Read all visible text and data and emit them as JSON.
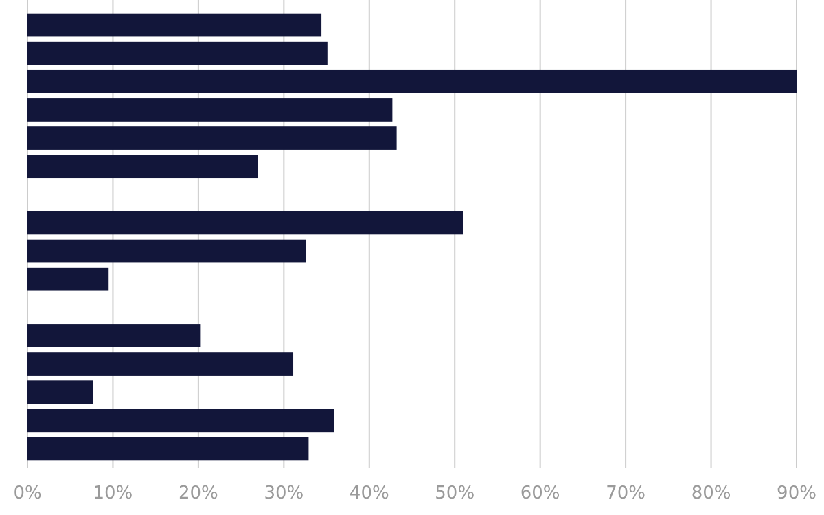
{
  "chart_data": {
    "type": "bar",
    "orientation": "horizontal",
    "categories": [
      null,
      null,
      null,
      null,
      null,
      null,
      null,
      null,
      null,
      null,
      null,
      null,
      null,
      null,
      null,
      null
    ],
    "values": [
      34.4,
      35.1,
      90,
      42.7,
      43.2,
      27.0,
      null,
      51.0,
      32.6,
      9.5,
      null,
      20.2,
      31.1,
      7.7,
      35.9,
      32.9
    ],
    "color": "#12163a",
    "xlim": [
      0,
      90
    ],
    "xticks": [
      {
        "value": 0,
        "label": "0%"
      },
      {
        "value": 10,
        "label": "10%"
      },
      {
        "value": 20,
        "label": "20%"
      },
      {
        "value": 30,
        "label": "30%"
      },
      {
        "value": 40,
        "label": "40%"
      },
      {
        "value": 50,
        "label": "50%"
      },
      {
        "value": 60,
        "label": "60%"
      },
      {
        "value": 70,
        "label": "70%"
      },
      {
        "value": 80,
        "label": "80%"
      },
      {
        "value": 90,
        "label": "90%"
      }
    ],
    "grid": "x",
    "tick_labels": "x"
  }
}
